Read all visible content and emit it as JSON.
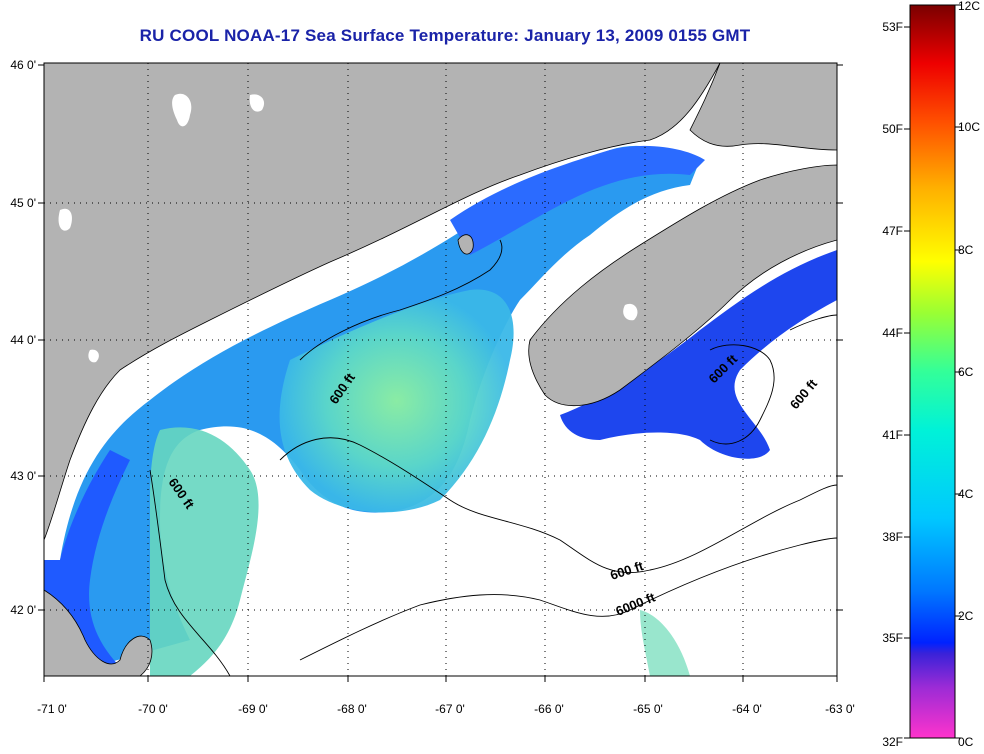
{
  "title": "RU COOL  NOAA-17  Sea Surface Temperature:  January 13, 2009 0155 GMT",
  "map": {
    "lon_ticks": [
      "-71 0'",
      "-70 0'",
      "-69 0'",
      "-68 0'",
      "-67 0'",
      "-66 0'",
      "-65 0'",
      "-64 0'",
      "-63 0'"
    ],
    "lat_ticks": [
      "46 0'",
      "45 0'",
      "44 0'",
      "43 0'",
      "42 0'"
    ],
    "contour_labels": [
      "600 ft",
      "600 ft",
      "600 ft",
      "600 ft",
      "600 ft",
      "6000 ft"
    ],
    "colors": {
      "land": "#b3b3b3",
      "cloud": "#ffffff",
      "coast": "#000000"
    }
  },
  "colorbar": {
    "fahrenheit": [
      "53F",
      "50F",
      "47F",
      "44F",
      "41F",
      "38F",
      "35F",
      "32F"
    ],
    "celsius": [
      "12C",
      "10C",
      "8C",
      "6C",
      "4C",
      "2C",
      "0C"
    ]
  }
}
